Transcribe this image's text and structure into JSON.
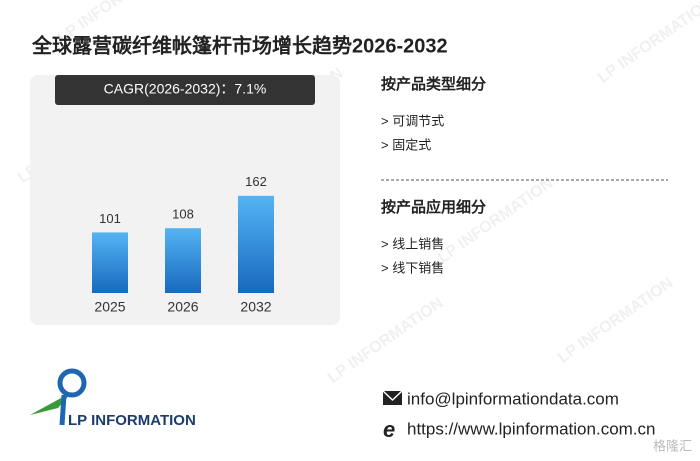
{
  "title": "全球露营碳纤维帐篷杆市场增长趋势2026-2032",
  "chart_data": {
    "type": "bar",
    "cagr": "CAGR(2026-2032)：7.1%",
    "categories": [
      "2025",
      "2026",
      "2032"
    ],
    "values": [
      101,
      108,
      162
    ],
    "color_top": "#55b4f4",
    "color_bottom": "#1769bd"
  },
  "segments": [
    {
      "title": "按产品类型细分",
      "items": [
        "> 可调节式",
        "> 固定式"
      ]
    },
    {
      "title": "按产品应用细分",
      "items": [
        "> 线上销售",
        "> 线下销售"
      ]
    }
  ],
  "logo": "LP INFORMATION",
  "contact": {
    "email": "info@lpinformationdata.com",
    "website": "https://www.lpinformation.com.cn"
  },
  "watermark": "LP INFORMATION",
  "badge": "格隆汇"
}
